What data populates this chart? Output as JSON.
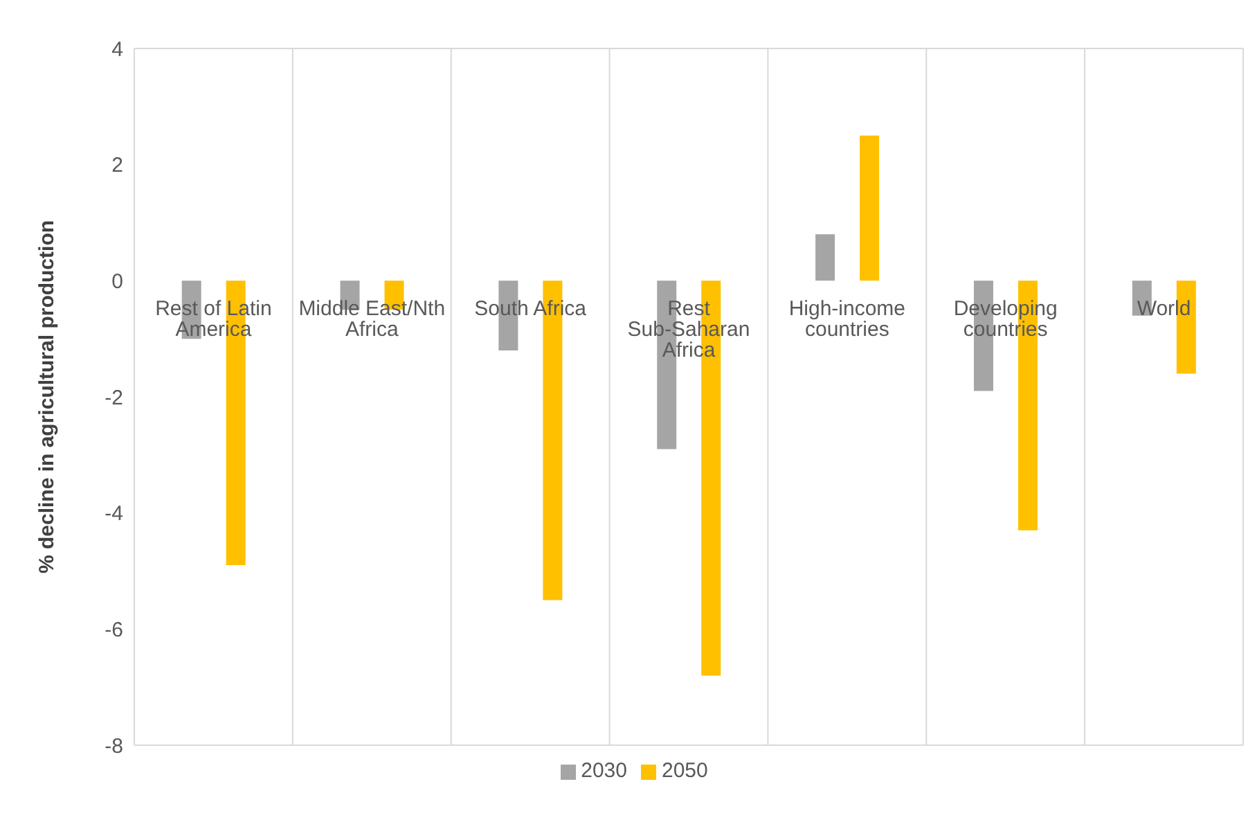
{
  "chart_data": {
    "type": "bar",
    "ylabel": "% decline in agricultural production",
    "categories": [
      "Rest of Latin America",
      "Middle East/Nth Africa",
      "South Africa",
      "Rest Sub-Saharan Africa",
      "High-income countries",
      "Developing countries",
      "World"
    ],
    "series": [
      {
        "name": "2030",
        "color": "#a5a5a5",
        "values": [
          -1.0,
          -0.5,
          -1.2,
          -2.9,
          0.8,
          -1.9,
          -0.6
        ]
      },
      {
        "name": "2050",
        "color": "#ffc000",
        "values": [
          -4.9,
          -0.5,
          -5.5,
          -6.8,
          2.5,
          -4.3,
          -1.6
        ]
      }
    ],
    "ylim": [
      -8,
      4
    ],
    "yticks": [
      -8,
      -6,
      -4,
      -2,
      0,
      2,
      4
    ],
    "grid": true,
    "legend": "bottom"
  }
}
